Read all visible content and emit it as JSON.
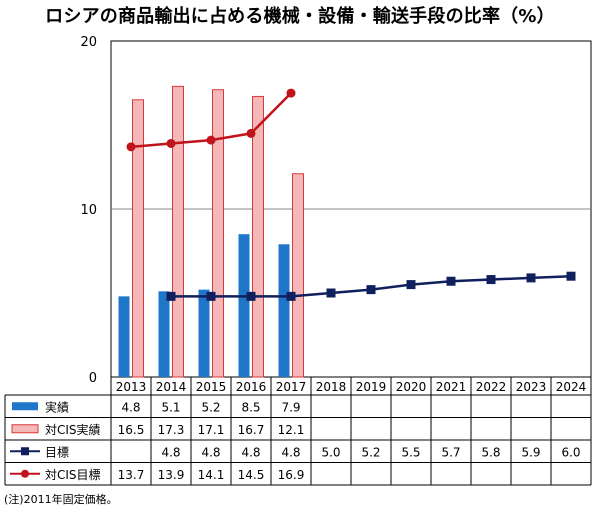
{
  "title": "ロシアの商品輸出に占める機械・設備・輸送手段の比率（%）",
  "footnote": "(注)2011年固定価格。",
  "chart_data": {
    "type": "bar",
    "categories": [
      "2013",
      "2014",
      "2015",
      "2016",
      "2017",
      "2018",
      "2019",
      "2020",
      "2021",
      "2022",
      "2023",
      "2024"
    ],
    "ylim": [
      0,
      20
    ],
    "yticks": [
      "0",
      "10",
      "20"
    ],
    "grid": true,
    "series": [
      {
        "name": "実績",
        "kind": "bar",
        "color": "#1f77c9",
        "values": [
          4.8,
          5.1,
          5.2,
          8.5,
          7.9,
          null,
          null,
          null,
          null,
          null,
          null,
          null
        ],
        "labels": [
          "4.8",
          "5.1",
          "5.2",
          "8.5",
          "7.9",
          "",
          "",
          "",
          "",
          "",
          "",
          ""
        ]
      },
      {
        "name": "対CIS実績",
        "kind": "bar",
        "color": "#f4b8b8",
        "stroke": "#d9393b",
        "values": [
          16.5,
          17.3,
          17.1,
          16.7,
          12.1,
          null,
          null,
          null,
          null,
          null,
          null,
          null
        ],
        "labels": [
          "16.5",
          "17.3",
          "17.1",
          "16.7",
          "12.1",
          "",
          "",
          "",
          "",
          "",
          "",
          ""
        ]
      },
      {
        "name": "目標",
        "kind": "line",
        "marker": "square",
        "color": "#10205e",
        "values": [
          null,
          4.8,
          4.8,
          4.8,
          4.8,
          5.0,
          5.2,
          5.5,
          5.7,
          5.8,
          5.9,
          6.0
        ],
        "labels": [
          "",
          "4.8",
          "4.8",
          "4.8",
          "4.8",
          "5.0",
          "5.2",
          "5.5",
          "5.7",
          "5.8",
          "5.9",
          "6.0"
        ]
      },
      {
        "name": "対CIS目標",
        "kind": "line",
        "marker": "circle",
        "color": "#c0141a",
        "values": [
          13.7,
          13.9,
          14.1,
          14.5,
          16.9,
          null,
          null,
          null,
          null,
          null,
          null,
          null
        ],
        "labels": [
          "13.7",
          "13.9",
          "14.1",
          "14.5",
          "16.9",
          "",
          "",
          "",
          "",
          "",
          "",
          ""
        ]
      }
    ]
  }
}
